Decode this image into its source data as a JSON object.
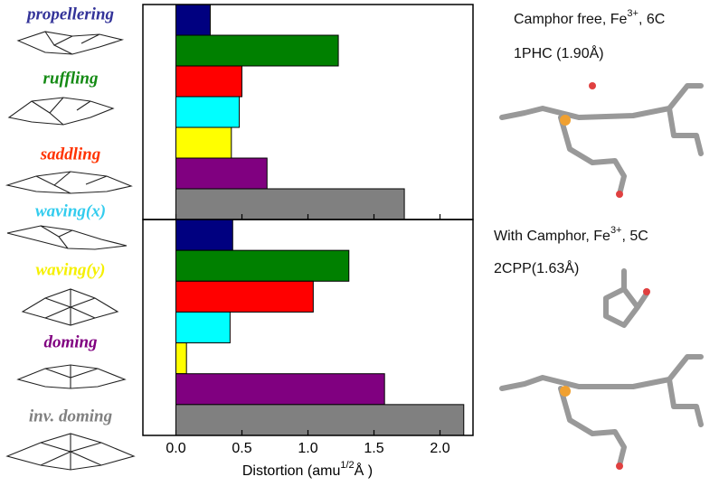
{
  "chart_data": [
    {
      "type": "bar",
      "categories": [
        "propellering",
        "ruffling",
        "saddling",
        "waving(x)",
        "waving(y)",
        "doming",
        "inv. doming"
      ],
      "label_colors": [
        "#333399",
        "#138a13",
        "#ff3300",
        "#33ccee",
        "#f5f000",
        "#800080",
        "#808080"
      ],
      "colors": [
        "#000080",
        "#008000",
        "#ff0000",
        "#00ffff",
        "#ffff00",
        "#800080",
        "#808080"
      ],
      "values": [
        0.26,
        1.23,
        0.5,
        0.48,
        0.42,
        0.69,
        1.73
      ],
      "xlim": [
        -0.25,
        2.25
      ],
      "xticks": [
        {
          "value": 0,
          "label": "0.0"
        },
        {
          "value": 0.5,
          "label": "0.5"
        },
        {
          "value": 1,
          "label": "1.0"
        },
        {
          "value": 1.5,
          "label": "1.5"
        },
        {
          "value": 2,
          "label": "2.0"
        }
      ],
      "xlabel": [
        "Distortion (amu",
        "1/2",
        "Å )"
      ],
      "annotations": [
        [
          "Camphor free, Fe",
          "3+",
          ", 6C"
        ],
        [
          "1PHC (1.90Å)"
        ]
      ]
    },
    {
      "type": "bar",
      "values": [
        0.43,
        1.31,
        1.04,
        0.41,
        0.08,
        1.58,
        2.18
      ],
      "annotations": [
        [
          "With Camphor, Fe",
          "3+",
          ", 5C"
        ],
        [
          "2CPP(1.63Å)"
        ]
      ]
    }
  ]
}
